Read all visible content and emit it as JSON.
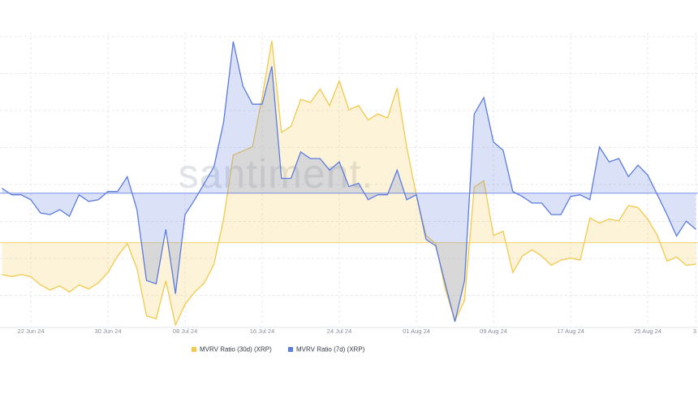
{
  "chart_data": {
    "type": "area-line",
    "watermark": "santiment.",
    "categories": [
      null,
      null,
      null,
      "22 Jun 24",
      null,
      null,
      null,
      null,
      null,
      null,
      null,
      "30 Jun 24",
      null,
      null,
      null,
      null,
      null,
      null,
      null,
      "08 Jul 24",
      null,
      null,
      null,
      null,
      null,
      null,
      null,
      "16 Jul 24",
      null,
      null,
      null,
      null,
      null,
      null,
      null,
      "24 Jul 24",
      null,
      null,
      null,
      null,
      null,
      null,
      null,
      "01 Aug 24",
      null,
      null,
      null,
      null,
      null,
      null,
      null,
      "09 Aug 24",
      null,
      null,
      null,
      null,
      null,
      null,
      null,
      "17 Aug 24",
      null,
      null,
      null,
      null,
      null,
      null,
      null,
      "25 Aug 24",
      null,
      null,
      null,
      null,
      "3"
    ],
    "series": [
      {
        "name": "MVRV Ratio (30d) (XRP)",
        "color": "#f2c94c",
        "axis": "y",
        "values": [
          -3.1,
          -3.3,
          -3.1,
          -3.3,
          -4.1,
          -4.6,
          -4.2,
          -4.8,
          -4.1,
          -4.5,
          -3.9,
          -2.9,
          -1.3,
          -0.1,
          -2.5,
          -7.1,
          -7.4,
          -3.7,
          -8.0,
          -6.0,
          -4.8,
          -3.9,
          -2.1,
          2.3,
          8.5,
          8.9,
          9.3,
          14.1,
          19.6,
          10.7,
          11.3,
          13.9,
          13.6,
          14.9,
          13.3,
          15.7,
          12.9,
          13.3,
          11.9,
          12.5,
          12.1,
          15.0,
          9.3,
          4.6,
          0.7,
          -0.1,
          -4.5,
          -7.6,
          -5.6,
          5.4,
          6.0,
          0.7,
          1.1,
          -2.9,
          -1.3,
          -0.7,
          -1.3,
          -2.2,
          -1.7,
          -1.5,
          -1.7,
          2.4,
          1.9,
          2.3,
          2.1,
          3.6,
          3.4,
          2.3,
          0.7,
          -1.8,
          -1.4,
          -2.2,
          -2.1
        ]
      },
      {
        "name": "MVRV Ratio (7d) (XRP)",
        "color": "#5b7be0",
        "axis": "y2",
        "values": [
          0.3,
          -0.1,
          -0.1,
          -0.4,
          -1.2,
          -1.3,
          -1.0,
          -1.4,
          -0.1,
          -0.5,
          -0.4,
          0.1,
          0.1,
          1.0,
          -1.0,
          -5.3,
          -5.5,
          -2.2,
          -6.1,
          -1.3,
          -0.4,
          0.6,
          1.6,
          4.3,
          9.2,
          6.5,
          5.4,
          5.4,
          7.7,
          0.9,
          0.9,
          2.5,
          2.1,
          2.1,
          1.4,
          1.9,
          0.4,
          0.6,
          -0.4,
          -0.1,
          -0.1,
          1.4,
          -0.4,
          -0.1,
          -2.8,
          -3.2,
          -5.5,
          -7.8,
          -5.3,
          4.8,
          5.8,
          3.1,
          2.6,
          0.1,
          -0.2,
          -0.6,
          -0.6,
          -1.3,
          -1.3,
          -0.2,
          -0.1,
          -0.4,
          2.8,
          1.9,
          2.1,
          1.0,
          1.7,
          1.1,
          -0.1,
          -1.3,
          -2.6,
          -1.7,
          -2.2
        ]
      }
    ],
    "ylim": [
      -8,
      20
    ],
    "y2lim": [
      -8,
      9.5
    ],
    "grid": true
  }
}
